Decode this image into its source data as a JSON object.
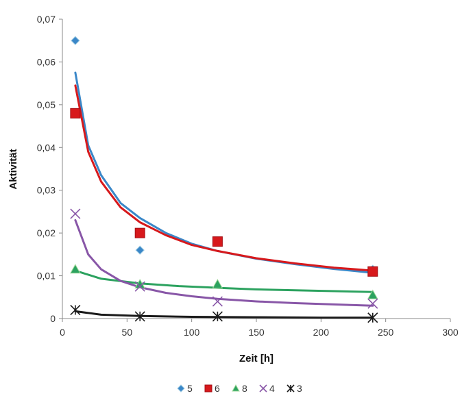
{
  "chart_data": {
    "type": "scatter",
    "xlabel": "Zeit [h]",
    "ylabel": "Aktivität",
    "xlim": [
      0,
      300
    ],
    "ylim": [
      0,
      0.07
    ],
    "xticks": [
      "0",
      "50",
      "100",
      "150",
      "200",
      "250",
      "300"
    ],
    "yticks": [
      "0",
      "0,01",
      "0,02",
      "0,03",
      "0,04",
      "0,05",
      "0,06",
      "0,07"
    ],
    "grid": false,
    "legend_position": "bottom",
    "series": [
      {
        "name": "5",
        "marker": "diamond",
        "color": "#3a87c8",
        "points": [
          [
            10,
            0.065
          ],
          [
            60,
            0.016
          ],
          [
            120,
            0.018
          ],
          [
            240,
            0.0115
          ]
        ],
        "trend": [
          [
            10,
            0.0575
          ],
          [
            20,
            0.0405
          ],
          [
            30,
            0.0335
          ],
          [
            45,
            0.027
          ],
          [
            60,
            0.0235
          ],
          [
            80,
            0.02
          ],
          [
            100,
            0.0175
          ],
          [
            120,
            0.0158
          ],
          [
            150,
            0.014
          ],
          [
            180,
            0.0127
          ],
          [
            210,
            0.0116
          ],
          [
            240,
            0.0107
          ]
        ]
      },
      {
        "name": "6",
        "marker": "square",
        "color": "#d7191c",
        "points": [
          [
            10,
            0.048
          ],
          [
            60,
            0.02
          ],
          [
            120,
            0.018
          ],
          [
            240,
            0.011
          ]
        ],
        "trend": [
          [
            10,
            0.0545
          ],
          [
            20,
            0.039
          ],
          [
            30,
            0.032
          ],
          [
            45,
            0.026
          ],
          [
            60,
            0.0225
          ],
          [
            80,
            0.0195
          ],
          [
            100,
            0.0172
          ],
          [
            120,
            0.0158
          ],
          [
            150,
            0.0141
          ],
          [
            180,
            0.0129
          ],
          [
            210,
            0.0119
          ],
          [
            240,
            0.0112
          ]
        ]
      },
      {
        "name": "8",
        "marker": "triangle",
        "color": "#2ca25f",
        "points": [
          [
            10,
            0.0115
          ],
          [
            60,
            0.008
          ],
          [
            120,
            0.008
          ],
          [
            240,
            0.0055
          ]
        ],
        "trend": [
          [
            10,
            0.0112
          ],
          [
            30,
            0.0093
          ],
          [
            60,
            0.0082
          ],
          [
            90,
            0.0076
          ],
          [
            120,
            0.0072
          ],
          [
            150,
            0.0068
          ],
          [
            180,
            0.0066
          ],
          [
            210,
            0.0064
          ],
          [
            240,
            0.0062
          ]
        ]
      },
      {
        "name": "4",
        "marker": "x",
        "color": "#8856a7",
        "points": [
          [
            10,
            0.0245
          ],
          [
            60,
            0.0075
          ],
          [
            120,
            0.004
          ],
          [
            240,
            0.0035
          ]
        ],
        "trend": [
          [
            10,
            0.023
          ],
          [
            20,
            0.015
          ],
          [
            30,
            0.0115
          ],
          [
            45,
            0.0088
          ],
          [
            60,
            0.0073
          ],
          [
            80,
            0.006
          ],
          [
            100,
            0.0052
          ],
          [
            120,
            0.0046
          ],
          [
            150,
            0.004
          ],
          [
            180,
            0.0036
          ],
          [
            210,
            0.0033
          ],
          [
            240,
            0.003
          ]
        ]
      },
      {
        "name": "3",
        "marker": "star",
        "color": "#1a1a1a",
        "points": [
          [
            10,
            0.002
          ],
          [
            60,
            0.0005
          ],
          [
            120,
            0.0005
          ],
          [
            240,
            0.0002
          ]
        ],
        "trend": [
          [
            10,
            0.0017
          ],
          [
            30,
            0.0009
          ],
          [
            60,
            0.0006
          ],
          [
            100,
            0.0004
          ],
          [
            150,
            0.0003
          ],
          [
            200,
            0.0002
          ],
          [
            240,
            0.0002
          ]
        ]
      }
    ]
  }
}
